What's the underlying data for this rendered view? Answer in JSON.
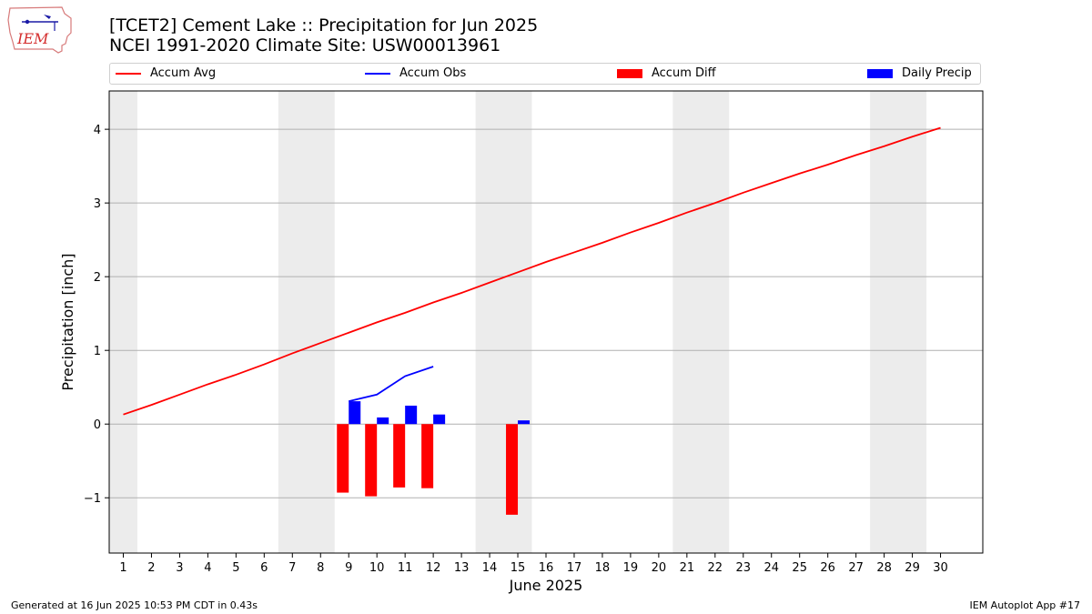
{
  "header": {
    "title_line1": "[TCET2] Cement Lake :: Precipitation for Jun 2025",
    "title_line2": "NCEI 1991-2020 Climate Site: USW00013961",
    "logo_text": "IEM"
  },
  "legend": {
    "placement": "top",
    "items": [
      {
        "label": "Accum Avg",
        "kind": "line",
        "color": "#ff0000"
      },
      {
        "label": "Accum Obs",
        "kind": "line",
        "color": "#0000ff"
      },
      {
        "label": "Accum Diff",
        "kind": "bar",
        "color": "#ff0000"
      },
      {
        "label": "Daily Precip",
        "kind": "bar",
        "color": "#0000ff"
      }
    ]
  },
  "footer": {
    "left": "Generated at 16 Jun 2025 10:53 PM CDT in 0.43s",
    "right": "IEM Autoplot App #17"
  },
  "chart_data": {
    "type": "line",
    "xlabel": "June 2025",
    "ylabel": "Precipitation [inch]",
    "xlim": [
      0.5,
      31.5
    ],
    "ylim": [
      -1.75,
      4.52
    ],
    "x_ticks": [
      1,
      2,
      3,
      4,
      5,
      6,
      7,
      8,
      9,
      10,
      11,
      12,
      13,
      14,
      15,
      16,
      17,
      18,
      19,
      20,
      21,
      22,
      23,
      24,
      25,
      26,
      27,
      28,
      29,
      30
    ],
    "y_ticks": [
      -1,
      0,
      1,
      2,
      3,
      4
    ],
    "y_tick_labels": [
      "−1",
      "0",
      "1",
      "2",
      "3",
      "4"
    ],
    "grid": "horizontal",
    "weekend_shading": [
      [
        0.5,
        1.5
      ],
      [
        6.5,
        8.5
      ],
      [
        13.5,
        15.5
      ],
      [
        20.5,
        22.5
      ],
      [
        27.5,
        29.5
      ]
    ],
    "weekend_color": "#ececec",
    "series": [
      {
        "name": "Accum Avg",
        "kind": "line",
        "color": "#ff0000",
        "x": [
          1,
          2,
          3,
          4,
          5,
          6,
          7,
          8,
          9,
          10,
          11,
          12,
          13,
          14,
          15,
          16,
          17,
          18,
          19,
          20,
          21,
          22,
          23,
          24,
          25,
          26,
          27,
          28,
          29,
          30
        ],
        "values": [
          0.13,
          0.26,
          0.4,
          0.54,
          0.67,
          0.81,
          0.96,
          1.1,
          1.24,
          1.38,
          1.51,
          1.65,
          1.78,
          1.92,
          2.06,
          2.2,
          2.33,
          2.46,
          2.6,
          2.73,
          2.87,
          3.0,
          3.14,
          3.27,
          3.4,
          3.52,
          3.65,
          3.77,
          3.9,
          4.02
        ]
      },
      {
        "name": "Accum Obs",
        "kind": "line",
        "color": "#0000ff",
        "x": [
          9,
          10,
          11,
          12
        ],
        "values": [
          0.31,
          0.4,
          0.65,
          0.78
        ]
      },
      {
        "name": "Accum Diff",
        "kind": "bar",
        "color": "#ff0000",
        "x": [
          9,
          10,
          11,
          12,
          15
        ],
        "values": [
          -0.93,
          -0.98,
          -0.86,
          -0.87,
          -1.23
        ]
      },
      {
        "name": "Daily Precip",
        "kind": "bar",
        "color": "#0000ff",
        "x": [
          9,
          10,
          11,
          12,
          15
        ],
        "values": [
          0.31,
          0.09,
          0.25,
          0.13,
          0.05
        ]
      }
    ]
  }
}
